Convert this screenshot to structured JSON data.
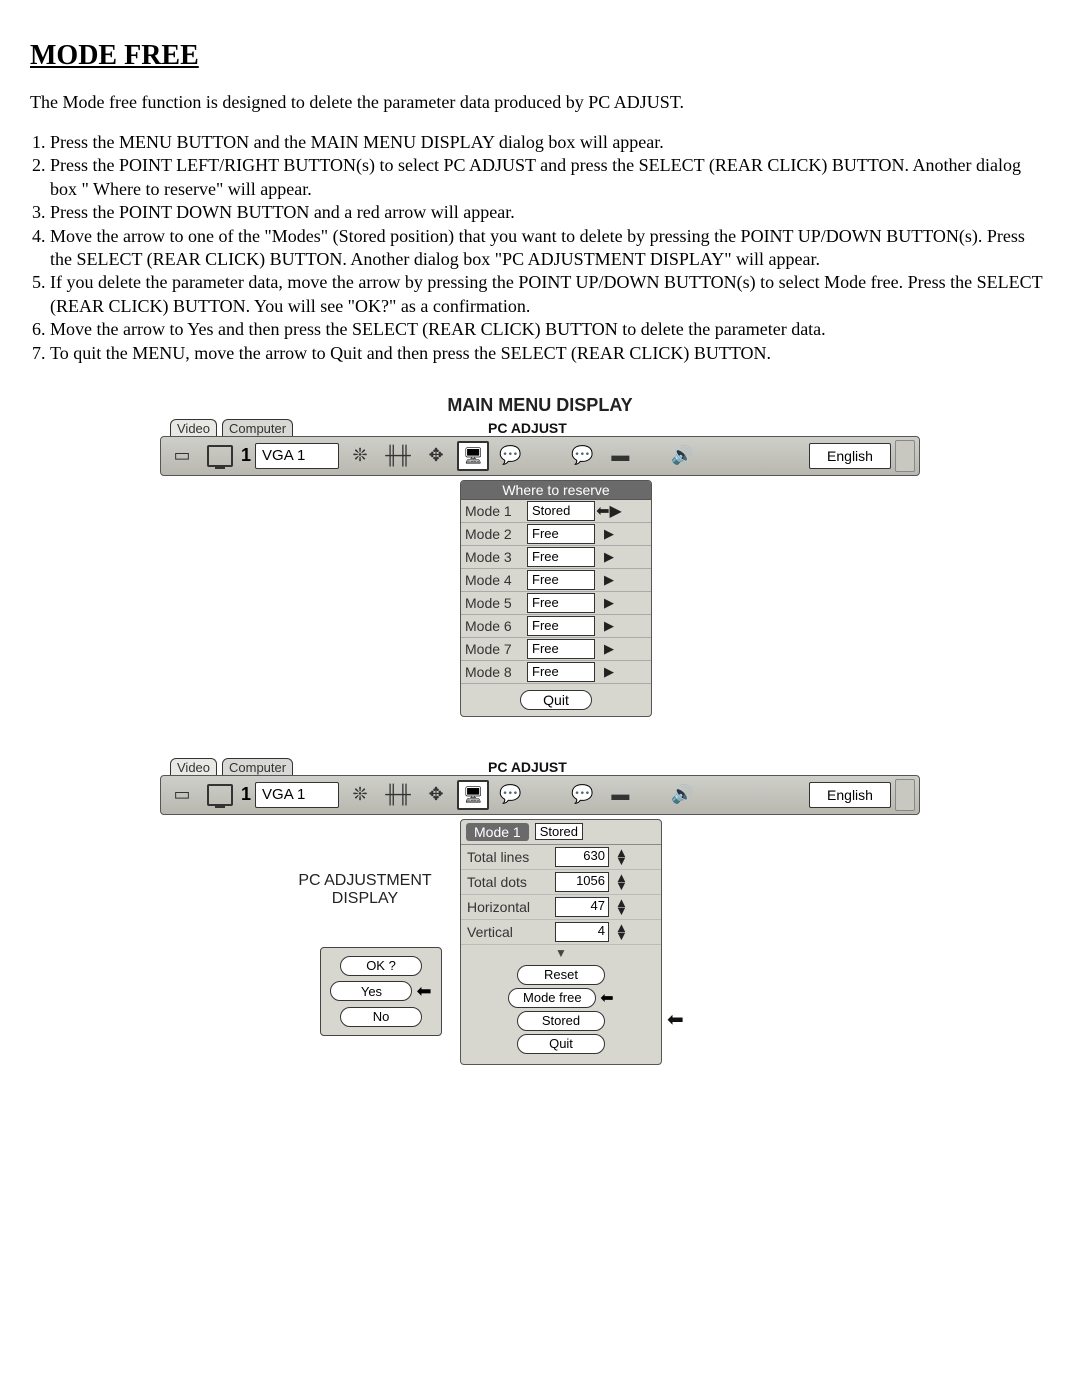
{
  "page": {
    "title": "MODE FREE",
    "intro": "The Mode free function is designed to delete the parameter data produced by PC ADJUST.",
    "steps": [
      "Press the MENU BUTTON and the MAIN MENU DISPLAY dialog box will appear.",
      "Press the POINT LEFT/RIGHT BUTTON(s) to select PC ADJUST and press the SELECT (REAR CLICK) BUTTON. Another dialog box \" Where to reserve\" will appear.",
      "Press the POINT DOWN BUTTON and a red arrow will appear.",
      "Move the arrow to one of the \"Modes\" (Stored position) that you want to delete by pressing the POINT UP/DOWN BUTTON(s). Press the SELECT (REAR CLICK) BUTTON. Another dialog box \"PC ADJUSTMENT DISPLAY\" will appear.",
      "If you delete the parameter data, move the arrow by pressing the POINT UP/DOWN BUTTON(s) to select Mode free. Press the SELECT (REAR CLICK) BUTTON. You will see \"OK?\" as a confirmation.",
      "Move the arrow to Yes and then press the SELECT (REAR CLICK) BUTTON to delete the parameter data.",
      "To quit the MENU, move the arrow to Quit and then press the SELECT (REAR CLICK) BUTTON."
    ]
  },
  "menubar": {
    "caption": "MAIN MENU DISPLAY",
    "section_label": "PC ADJUST",
    "tab_video": "Video",
    "tab_computer": "Computer",
    "computer_num": "1",
    "input_box": "VGA 1",
    "language": "English"
  },
  "dialog1": {
    "title": "Where to reserve",
    "rows": [
      {
        "mode": "Mode 1",
        "state": "Stored",
        "selected": true
      },
      {
        "mode": "Mode 2",
        "state": "Free",
        "selected": false
      },
      {
        "mode": "Mode 3",
        "state": "Free",
        "selected": false
      },
      {
        "mode": "Mode 4",
        "state": "Free",
        "selected": false
      },
      {
        "mode": "Mode 5",
        "state": "Free",
        "selected": false
      },
      {
        "mode": "Mode 6",
        "state": "Free",
        "selected": false
      },
      {
        "mode": "Mode 7",
        "state": "Free",
        "selected": false
      },
      {
        "mode": "Mode 8",
        "state": "Free",
        "selected": false
      }
    ],
    "quit": "Quit"
  },
  "dialog2": {
    "side_label": "PC ADJUSTMENT DISPLAY",
    "mode": "Mode 1",
    "mode_state": "Stored",
    "params": [
      {
        "label": "Total lines",
        "value": "630"
      },
      {
        "label": "Total dots",
        "value": "1056"
      },
      {
        "label": "Horizontal",
        "value": "47"
      },
      {
        "label": "Vertical",
        "value": "4"
      }
    ],
    "actions": [
      "Reset",
      "Mode free",
      "Stored",
      "Quit"
    ],
    "selected_action_index": 1
  },
  "okbox": {
    "title": "OK ?",
    "yes": "Yes",
    "no": "No",
    "selected": "yes"
  },
  "colors": {
    "panel_bg": "#d7d7d0",
    "bar_bg_top": "#cfcfca",
    "bar_bg_bot": "#b8b8b0",
    "title_bg": "#6a6a6a",
    "border": "#555555",
    "text": "#000000"
  }
}
